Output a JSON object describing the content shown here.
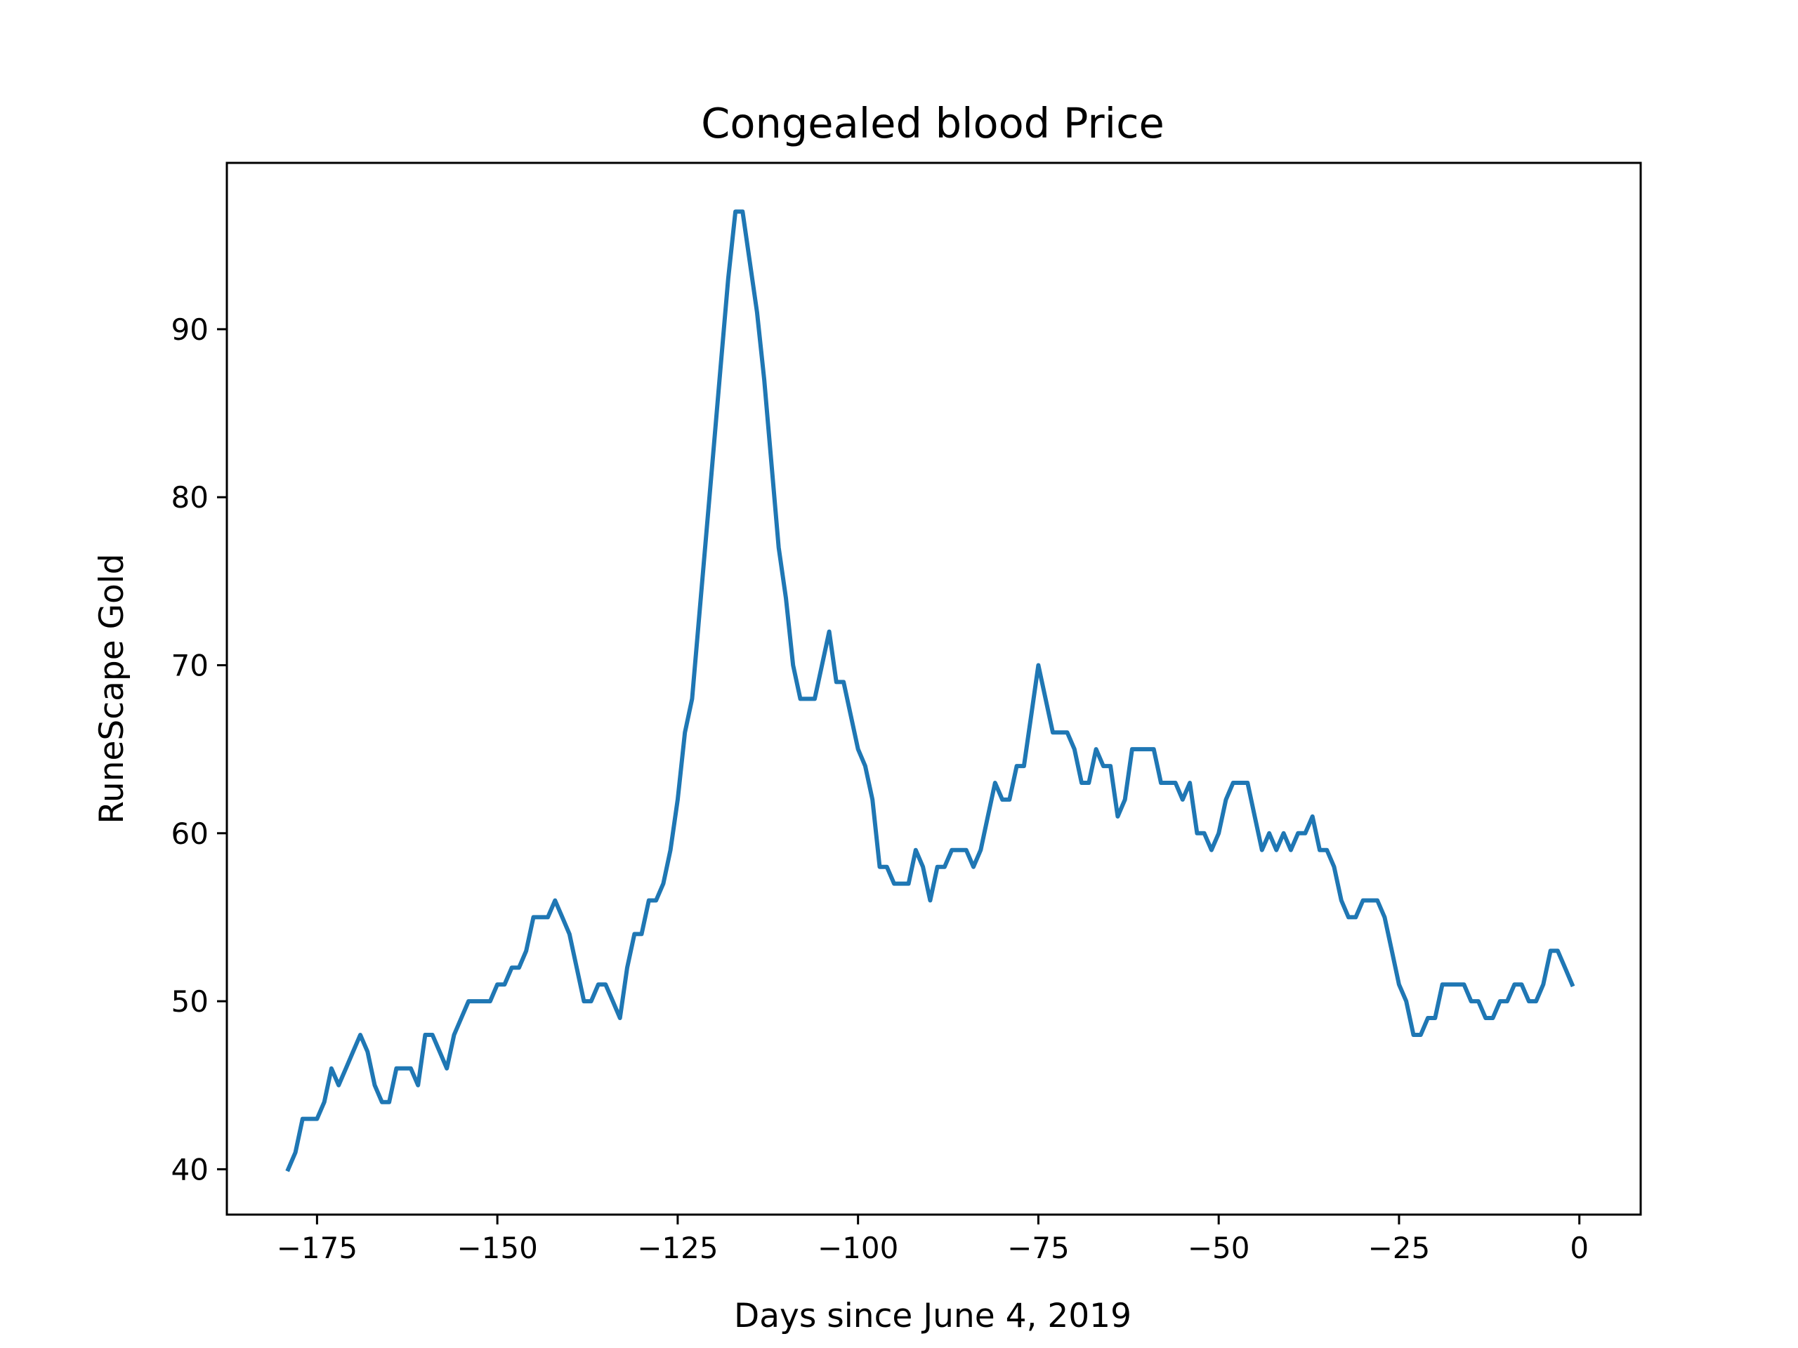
{
  "chart_data": {
    "type": "line",
    "title": "Congealed blood Price",
    "xlabel": "Days since June 4, 2019",
    "ylabel": "RuneScape Gold",
    "xlim": [
      -187.5,
      8.5
    ],
    "ylim": [
      37.3,
      99.9
    ],
    "xticks": [
      -175,
      -150,
      -125,
      -100,
      -75,
      -50,
      -25,
      0
    ],
    "xtick_labels": [
      "−175",
      "−150",
      "−125",
      "−100",
      "−75",
      "−50",
      "−25",
      "0"
    ],
    "yticks": [
      40,
      50,
      60,
      70,
      80,
      90
    ],
    "ytick_labels": [
      "40",
      "50",
      "60",
      "70",
      "80",
      "90"
    ],
    "grid": false,
    "legend": "none",
    "series": [
      {
        "color": "#1f77b4",
        "points": [
          [
            -179,
            40
          ],
          [
            -178,
            41
          ],
          [
            -177,
            43
          ],
          [
            -176,
            43
          ],
          [
            -175,
            43
          ],
          [
            -174,
            44
          ],
          [
            -173,
            46
          ],
          [
            -172,
            45
          ],
          [
            -171,
            46
          ],
          [
            -170,
            47
          ],
          [
            -169,
            48
          ],
          [
            -168,
            47
          ],
          [
            -167,
            45
          ],
          [
            -166,
            44
          ],
          [
            -165,
            44
          ],
          [
            -164,
            46
          ],
          [
            -163,
            46
          ],
          [
            -162,
            46
          ],
          [
            -161,
            45
          ],
          [
            -160,
            48
          ],
          [
            -159,
            48
          ],
          [
            -158,
            47
          ],
          [
            -157,
            46
          ],
          [
            -156,
            48
          ],
          [
            -155,
            49
          ],
          [
            -154,
            50
          ],
          [
            -153,
            50
          ],
          [
            -152,
            50
          ],
          [
            -151,
            50
          ],
          [
            -150,
            51
          ],
          [
            -149,
            51
          ],
          [
            -148,
            52
          ],
          [
            -147,
            52
          ],
          [
            -146,
            53
          ],
          [
            -145,
            55
          ],
          [
            -144,
            55
          ],
          [
            -143,
            55
          ],
          [
            -142,
            56
          ],
          [
            -141,
            55
          ],
          [
            -140,
            54
          ],
          [
            -139,
            52
          ],
          [
            -138,
            50
          ],
          [
            -137,
            50
          ],
          [
            -136,
            51
          ],
          [
            -135,
            51
          ],
          [
            -134,
            50
          ],
          [
            -133,
            49
          ],
          [
            -132,
            52
          ],
          [
            -131,
            54
          ],
          [
            -130,
            54
          ],
          [
            -129,
            56
          ],
          [
            -128,
            56
          ],
          [
            -127,
            57
          ],
          [
            -126,
            59
          ],
          [
            -125,
            62
          ],
          [
            -124,
            66
          ],
          [
            -123,
            68
          ],
          [
            -122,
            73
          ],
          [
            -121,
            78
          ],
          [
            -120,
            83
          ],
          [
            -119,
            88
          ],
          [
            -118,
            93
          ],
          [
            -117,
            97
          ],
          [
            -116,
            97
          ],
          [
            -115,
            94
          ],
          [
            -114,
            91
          ],
          [
            -113,
            87
          ],
          [
            -112,
            82
          ],
          [
            -111,
            77
          ],
          [
            -110,
            74
          ],
          [
            -109,
            70
          ],
          [
            -108,
            68
          ],
          [
            -107,
            68
          ],
          [
            -106,
            68
          ],
          [
            -105,
            70
          ],
          [
            -104,
            72
          ],
          [
            -103,
            69
          ],
          [
            -102,
            69
          ],
          [
            -101,
            67
          ],
          [
            -100,
            65
          ],
          [
            -99,
            64
          ],
          [
            -98,
            62
          ],
          [
            -97,
            58
          ],
          [
            -96,
            58
          ],
          [
            -95,
            57
          ],
          [
            -94,
            57
          ],
          [
            -93,
            57
          ],
          [
            -92,
            59
          ],
          [
            -91,
            58
          ],
          [
            -90,
            56
          ],
          [
            -89,
            58
          ],
          [
            -88,
            58
          ],
          [
            -87,
            59
          ],
          [
            -86,
            59
          ],
          [
            -85,
            59
          ],
          [
            -84,
            58
          ],
          [
            -83,
            59
          ],
          [
            -82,
            61
          ],
          [
            -81,
            63
          ],
          [
            -80,
            62
          ],
          [
            -79,
            62
          ],
          [
            -78,
            64
          ],
          [
            -77,
            64
          ],
          [
            -76,
            67
          ],
          [
            -75,
            70
          ],
          [
            -74,
            68
          ],
          [
            -73,
            66
          ],
          [
            -72,
            66
          ],
          [
            -71,
            66
          ],
          [
            -70,
            65
          ],
          [
            -69,
            63
          ],
          [
            -68,
            63
          ],
          [
            -67,
            65
          ],
          [
            -66,
            64
          ],
          [
            -65,
            64
          ],
          [
            -64,
            61
          ],
          [
            -63,
            62
          ],
          [
            -62,
            65
          ],
          [
            -61,
            65
          ],
          [
            -60,
            65
          ],
          [
            -59,
            65
          ],
          [
            -58,
            63
          ],
          [
            -57,
            63
          ],
          [
            -56,
            63
          ],
          [
            -55,
            62
          ],
          [
            -54,
            63
          ],
          [
            -53,
            60
          ],
          [
            -52,
            60
          ],
          [
            -51,
            59
          ],
          [
            -50,
            60
          ],
          [
            -49,
            62
          ],
          [
            -48,
            63
          ],
          [
            -47,
            63
          ],
          [
            -46,
            63
          ],
          [
            -45,
            61
          ],
          [
            -44,
            59
          ],
          [
            -43,
            60
          ],
          [
            -42,
            59
          ],
          [
            -41,
            60
          ],
          [
            -40,
            59
          ],
          [
            -39,
            60
          ],
          [
            -38,
            60
          ],
          [
            -37,
            61
          ],
          [
            -36,
            59
          ],
          [
            -35,
            59
          ],
          [
            -34,
            58
          ],
          [
            -33,
            56
          ],
          [
            -32,
            55
          ],
          [
            -31,
            55
          ],
          [
            -30,
            56
          ],
          [
            -29,
            56
          ],
          [
            -28,
            56
          ],
          [
            -27,
            55
          ],
          [
            -26,
            53
          ],
          [
            -25,
            51
          ],
          [
            -24,
            50
          ],
          [
            -23,
            48
          ],
          [
            -22,
            48
          ],
          [
            -21,
            49
          ],
          [
            -20,
            49
          ],
          [
            -19,
            51
          ],
          [
            -18,
            51
          ],
          [
            -17,
            51
          ],
          [
            -16,
            51
          ],
          [
            -15,
            50
          ],
          [
            -14,
            50
          ],
          [
            -13,
            49
          ],
          [
            -12,
            49
          ],
          [
            -11,
            50
          ],
          [
            -10,
            50
          ],
          [
            -9,
            51
          ],
          [
            -8,
            51
          ],
          [
            -7,
            50
          ],
          [
            -6,
            50
          ],
          [
            -5,
            51
          ],
          [
            -4,
            53
          ],
          [
            -3,
            53
          ],
          [
            -2,
            52
          ],
          [
            -1,
            51
          ]
        ]
      }
    ]
  }
}
